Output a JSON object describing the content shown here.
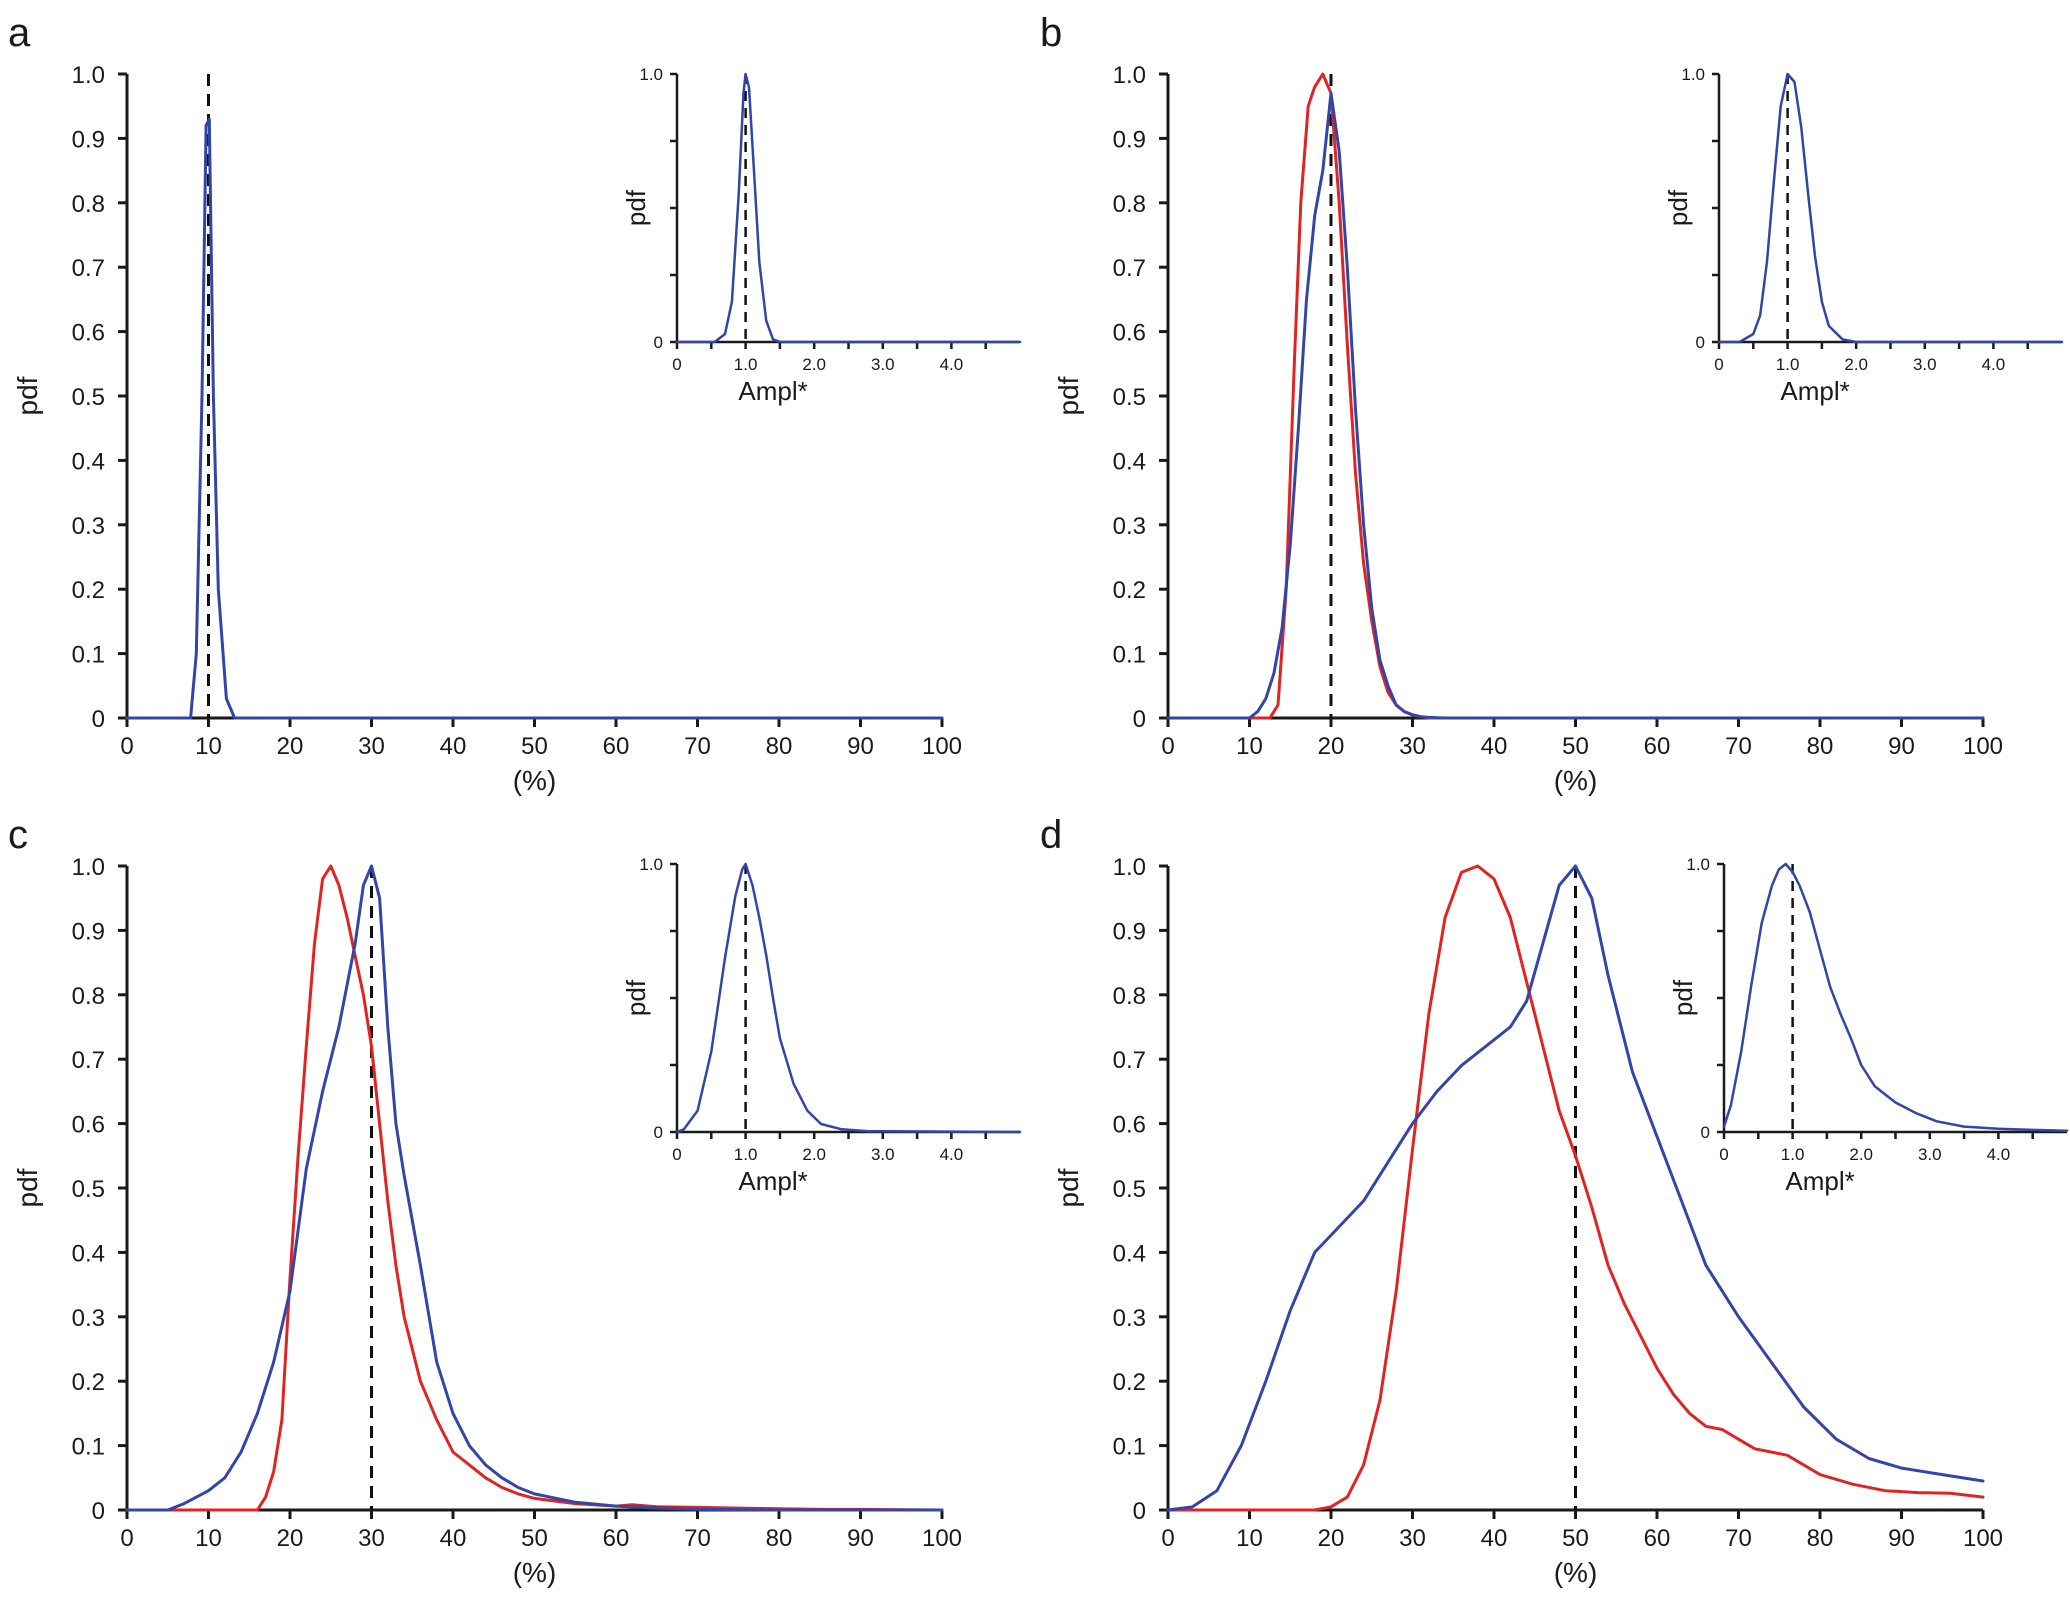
{
  "figure": {
    "colors": {
      "blue": "#3346a6",
      "red": "#e02424",
      "axis": "#1a1a1a",
      "dashed": "#111111"
    }
  },
  "chart_data": [
    {
      "panel": "a",
      "type": "line",
      "xlabel": "(%)",
      "ylabel": "pdf",
      "xlim": [
        0,
        100
      ],
      "ylim": [
        0,
        1.0
      ],
      "xticks": [
        "0",
        "10",
        "20",
        "30",
        "40",
        "50",
        "60",
        "70",
        "80",
        "90",
        "100"
      ],
      "yticks": [
        "0",
        "0.1",
        "0.2",
        "0.3",
        "0.4",
        "0.5",
        "0.6",
        "0.7",
        "0.8",
        "0.9",
        "1.0"
      ],
      "marker_x": 10,
      "series": [
        {
          "name": "blue",
          "color": "#3346a6",
          "x": [
            0,
            7.8,
            8.5,
            9.2,
            9.7,
            10.1,
            10.6,
            11.2,
            12.2,
            13.2,
            100
          ],
          "y": [
            0,
            0.0,
            0.1,
            0.5,
            0.92,
            0.93,
            0.5,
            0.2,
            0.03,
            0.0,
            0
          ]
        }
      ],
      "inset": {
        "xlabel": "Ampl*",
        "ylabel": "pdf",
        "xlim": [
          0,
          5
        ],
        "ylim": [
          0,
          1.0
        ],
        "xticks": [
          "0",
          "1.0",
          "2.0",
          "3.0",
          "4.0"
        ],
        "yticks": [
          "0",
          "1.0"
        ],
        "marker_x": 1.0,
        "series": [
          {
            "name": "blue",
            "color": "#3346a6",
            "x": [
              0,
              0.55,
              0.7,
              0.8,
              0.9,
              0.97,
              1.0,
              1.05,
              1.12,
              1.2,
              1.3,
              1.4,
              1.5,
              5
            ],
            "y": [
              0,
              0.0,
              0.03,
              0.15,
              0.55,
              0.93,
              1.0,
              0.95,
              0.65,
              0.3,
              0.08,
              0.01,
              0,
              0
            ]
          }
        ]
      }
    },
    {
      "panel": "b",
      "type": "line",
      "xlabel": "(%)",
      "ylabel": "pdf",
      "xlim": [
        0,
        100
      ],
      "ylim": [
        0,
        1.0
      ],
      "xticks": [
        "0",
        "10",
        "20",
        "30",
        "40",
        "50",
        "60",
        "70",
        "80",
        "90",
        "100"
      ],
      "yticks": [
        "0",
        "0.1",
        "0.2",
        "0.3",
        "0.4",
        "0.5",
        "0.6",
        "0.7",
        "0.8",
        "0.9",
        "1.0"
      ],
      "marker_x": 20,
      "series": [
        {
          "name": "blue",
          "color": "#3346a6",
          "x": [
            0,
            10,
            11,
            12,
            13,
            14,
            15,
            16,
            17,
            18,
            19,
            20,
            21,
            22,
            23,
            24,
            25,
            26,
            27,
            28,
            29,
            30,
            31,
            32,
            34,
            100
          ],
          "y": [
            0,
            0,
            0.01,
            0.03,
            0.07,
            0.14,
            0.27,
            0.45,
            0.65,
            0.78,
            0.85,
            0.97,
            0.88,
            0.7,
            0.48,
            0.3,
            0.17,
            0.09,
            0.05,
            0.02,
            0.01,
            0.005,
            0.002,
            0.001,
            0,
            0
          ]
        },
        {
          "name": "red",
          "color": "#e02424",
          "x": [
            0,
            12.5,
            13.5,
            14.5,
            15.5,
            16.3,
            17.2,
            18,
            19,
            20,
            21,
            22,
            23,
            24,
            25,
            26,
            27,
            28,
            29,
            30,
            31,
            32,
            100
          ],
          "y": [
            0,
            0,
            0.02,
            0.2,
            0.55,
            0.8,
            0.95,
            0.98,
            1.0,
            0.97,
            0.8,
            0.58,
            0.38,
            0.24,
            0.15,
            0.08,
            0.04,
            0.02,
            0.01,
            0.005,
            0.002,
            0,
            0
          ]
        }
      ],
      "inset": {
        "xlabel": "Ampl*",
        "ylabel": "pdf",
        "xlim": [
          0,
          5
        ],
        "ylim": [
          0,
          1.0
        ],
        "xticks": [
          "0",
          "1.0",
          "2.0",
          "3.0",
          "4.0"
        ],
        "yticks": [
          "0",
          "1.0"
        ],
        "marker_x": 1.0,
        "series": [
          {
            "name": "blue",
            "color": "#3346a6",
            "x": [
              0,
              0.3,
              0.5,
              0.6,
              0.7,
              0.8,
              0.9,
              1.0,
              1.1,
              1.2,
              1.3,
              1.4,
              1.5,
              1.6,
              1.8,
              2.0,
              5
            ],
            "y": [
              0,
              0,
              0.03,
              0.1,
              0.3,
              0.6,
              0.88,
              1.0,
              0.97,
              0.8,
              0.55,
              0.32,
              0.15,
              0.06,
              0.01,
              0,
              0
            ]
          }
        ]
      }
    },
    {
      "panel": "c",
      "type": "line",
      "xlabel": "(%)",
      "ylabel": "pdf",
      "xlim": [
        0,
        100
      ],
      "ylim": [
        0,
        1.0
      ],
      "xticks": [
        "0",
        "10",
        "20",
        "30",
        "40",
        "50",
        "60",
        "70",
        "80",
        "90",
        "100"
      ],
      "yticks": [
        "0",
        "0.1",
        "0.2",
        "0.3",
        "0.4",
        "0.5",
        "0.6",
        "0.7",
        "0.8",
        "0.9",
        "1.0"
      ],
      "marker_x": 30,
      "series": [
        {
          "name": "blue",
          "color": "#3346a6",
          "x": [
            0,
            5,
            7,
            10,
            12,
            14,
            16,
            18,
            20,
            22,
            24,
            26,
            28,
            29,
            30,
            31,
            32,
            33,
            34,
            36,
            38,
            40,
            42,
            44,
            46,
            48,
            50,
            55,
            60,
            65,
            70,
            80,
            90,
            100
          ],
          "y": [
            0,
            0,
            0.01,
            0.03,
            0.05,
            0.09,
            0.15,
            0.23,
            0.34,
            0.53,
            0.65,
            0.75,
            0.88,
            0.97,
            1.0,
            0.95,
            0.75,
            0.6,
            0.52,
            0.38,
            0.23,
            0.15,
            0.1,
            0.07,
            0.05,
            0.035,
            0.025,
            0.012,
            0.006,
            0.003,
            0.001,
            0,
            0,
            0
          ]
        },
        {
          "name": "red",
          "color": "#e02424",
          "x": [
            0,
            16,
            17,
            18,
            19,
            20,
            21,
            22,
            23,
            24,
            25,
            26,
            27,
            28,
            29,
            30,
            31,
            32,
            33,
            34,
            35,
            36,
            38,
            40,
            42,
            44,
            46,
            48,
            50,
            55,
            60,
            62,
            65,
            70,
            75,
            80,
            85,
            90,
            100
          ],
          "y": [
            0,
            0,
            0.02,
            0.06,
            0.14,
            0.36,
            0.55,
            0.72,
            0.88,
            0.98,
            1.0,
            0.97,
            0.92,
            0.86,
            0.8,
            0.72,
            0.6,
            0.48,
            0.38,
            0.3,
            0.25,
            0.2,
            0.14,
            0.09,
            0.07,
            0.05,
            0.035,
            0.025,
            0.018,
            0.01,
            0.006,
            0.008,
            0.005,
            0.004,
            0.003,
            0.002,
            0.001,
            0.001,
            0
          ]
        }
      ],
      "inset": {
        "xlabel": "Ampl*",
        "ylabel": "pdf",
        "xlim": [
          0,
          5
        ],
        "ylim": [
          0,
          1.0
        ],
        "xticks": [
          "0",
          "1.0",
          "2.0",
          "3.0",
          "4.0"
        ],
        "yticks": [
          "0",
          "1.0"
        ],
        "marker_x": 1.0,
        "series": [
          {
            "name": "blue",
            "color": "#3346a6",
            "x": [
              0,
              0.1,
              0.3,
              0.5,
              0.7,
              0.85,
              0.95,
              1.0,
              1.1,
              1.2,
              1.3,
              1.4,
              1.5,
              1.7,
              1.9,
              2.1,
              2.4,
              2.8,
              5
            ],
            "y": [
              0,
              0.01,
              0.08,
              0.3,
              0.65,
              0.88,
              0.98,
              1.0,
              0.92,
              0.8,
              0.66,
              0.5,
              0.35,
              0.18,
              0.08,
              0.03,
              0.01,
              0.003,
              0
            ]
          }
        ]
      }
    },
    {
      "panel": "d",
      "type": "line",
      "xlabel": "(%)",
      "ylabel": "pdf",
      "xlim": [
        0,
        100
      ],
      "ylim": [
        0,
        1.0
      ],
      "xticks": [
        "0",
        "10",
        "20",
        "30",
        "40",
        "50",
        "60",
        "70",
        "80",
        "90",
        "100"
      ],
      "yticks": [
        "0",
        "0.1",
        "0.2",
        "0.3",
        "0.4",
        "0.5",
        "0.6",
        "0.7",
        "0.8",
        "0.9",
        "1.0"
      ],
      "marker_x": 50,
      "series": [
        {
          "name": "blue",
          "color": "#3346a6",
          "x": [
            0,
            3,
            6,
            9,
            12,
            15,
            18,
            21,
            24,
            27,
            30,
            33,
            36,
            39,
            42,
            44,
            46,
            48,
            50,
            52,
            54,
            57,
            60,
            63,
            66,
            70,
            74,
            78,
            82,
            86,
            90,
            95,
            100
          ],
          "y": [
            0,
            0.005,
            0.03,
            0.1,
            0.2,
            0.31,
            0.4,
            0.44,
            0.48,
            0.54,
            0.6,
            0.65,
            0.69,
            0.72,
            0.75,
            0.79,
            0.88,
            0.97,
            1.0,
            0.95,
            0.83,
            0.68,
            0.58,
            0.48,
            0.38,
            0.3,
            0.23,
            0.16,
            0.11,
            0.08,
            0.065,
            0.055,
            0.045
          ]
        },
        {
          "name": "red",
          "color": "#e02424",
          "x": [
            0,
            18,
            20,
            22,
            24,
            26,
            28,
            30,
            32,
            34,
            36,
            38,
            40,
            42,
            44,
            46,
            48,
            50,
            52,
            54,
            56,
            58,
            60,
            62,
            64,
            66,
            68,
            70,
            72,
            74,
            76,
            78,
            80,
            84,
            88,
            92,
            96,
            100
          ],
          "y": [
            0,
            0,
            0.005,
            0.02,
            0.07,
            0.17,
            0.34,
            0.56,
            0.77,
            0.92,
            0.99,
            1.0,
            0.98,
            0.92,
            0.82,
            0.72,
            0.62,
            0.55,
            0.47,
            0.38,
            0.32,
            0.27,
            0.22,
            0.18,
            0.15,
            0.13,
            0.125,
            0.11,
            0.095,
            0.09,
            0.085,
            0.07,
            0.055,
            0.04,
            0.03,
            0.027,
            0.026,
            0.02
          ]
        }
      ],
      "inset": {
        "xlabel": "Ampl*",
        "ylabel": "pdf",
        "xlim": [
          0,
          5
        ],
        "ylim": [
          0,
          1.0
        ],
        "xticks": [
          "0",
          "1.0",
          "2.0",
          "3.0",
          "4.0"
        ],
        "yticks": [
          "0",
          "1.0"
        ],
        "marker_x": 1.0,
        "series": [
          {
            "name": "blue",
            "color": "#3346a6",
            "x": [
              0,
              0.1,
              0.25,
              0.4,
              0.55,
              0.7,
              0.8,
              0.9,
              1.0,
              1.1,
              1.25,
              1.4,
              1.55,
              1.7,
              1.85,
              2.0,
              2.2,
              2.5,
              2.8,
              3.1,
              3.5,
              4.0,
              4.5,
              5.0
            ],
            "y": [
              0.02,
              0.1,
              0.3,
              0.55,
              0.78,
              0.92,
              0.98,
              1.0,
              0.97,
              0.92,
              0.82,
              0.68,
              0.54,
              0.44,
              0.35,
              0.25,
              0.17,
              0.11,
              0.07,
              0.04,
              0.02,
              0.012,
              0.008,
              0.005
            ]
          }
        ]
      }
    }
  ]
}
